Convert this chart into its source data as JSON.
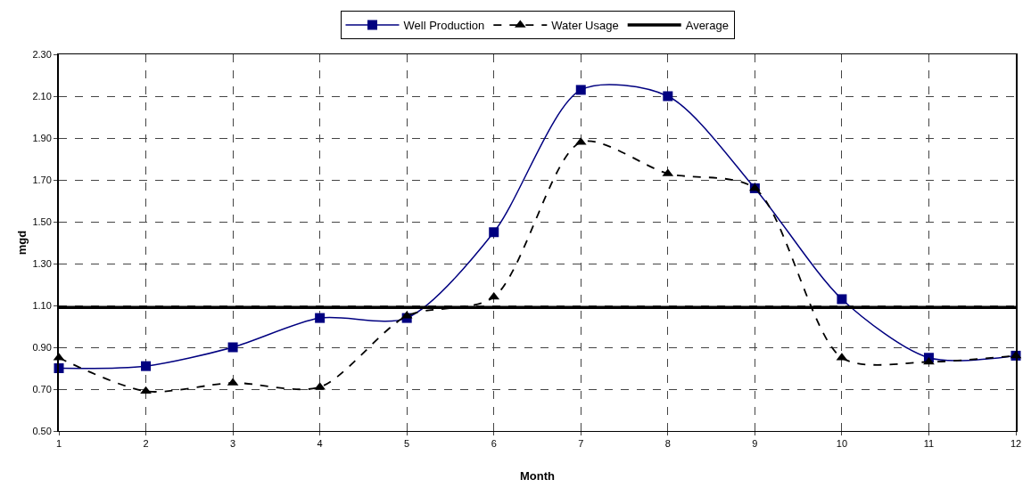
{
  "chart_data": {
    "type": "line",
    "xlabel": "Month",
    "ylabel": "mgd",
    "x": [
      1,
      2,
      3,
      4,
      5,
      6,
      7,
      8,
      9,
      10,
      11,
      12
    ],
    "series": [
      {
        "name": "Well Production",
        "color": "#000080",
        "marker": "square",
        "line_style": "solid",
        "values": [
          0.8,
          0.81,
          0.9,
          1.04,
          1.04,
          1.45,
          2.13,
          2.1,
          1.66,
          1.13,
          0.85,
          0.86
        ]
      },
      {
        "name": "Water Usage",
        "color": "#000000",
        "marker": "triangle",
        "line_style": "dashed",
        "values": [
          0.85,
          0.69,
          0.73,
          0.71,
          1.05,
          1.14,
          1.88,
          1.73,
          1.66,
          0.85,
          0.83,
          0.86
        ]
      },
      {
        "name": "Average",
        "color": "#000000",
        "marker": "none",
        "line_style": "solid",
        "values": [
          1.09,
          1.09,
          1.09,
          1.09,
          1.09,
          1.09,
          1.09,
          1.09,
          1.09,
          1.09,
          1.09,
          1.09
        ]
      }
    ],
    "xlim": [
      1,
      12
    ],
    "xticks": [
      1,
      2,
      3,
      4,
      5,
      6,
      7,
      8,
      9,
      10,
      11,
      12
    ],
    "ylim": [
      0.5,
      2.3
    ],
    "yticks": [
      {
        "value": 0.5,
        "label": "0.50"
      },
      {
        "value": 0.7,
        "label": "0.70"
      },
      {
        "value": 0.9,
        "label": "0.90"
      },
      {
        "value": 1.1,
        "label": "1.10"
      },
      {
        "value": 1.3,
        "label": "1.30"
      },
      {
        "value": 1.5,
        "label": "1.50"
      },
      {
        "value": 1.7,
        "label": "1.70"
      },
      {
        "value": 1.9,
        "label": "1.90"
      },
      {
        "value": 2.1,
        "label": "2.10"
      },
      {
        "value": 2.3,
        "label": "2.30"
      }
    ],
    "grid": true,
    "legend": "top"
  }
}
